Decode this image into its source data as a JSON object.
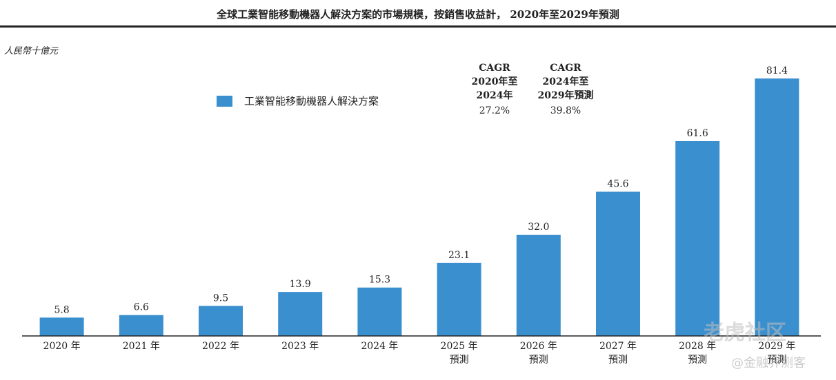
{
  "header": {
    "title": "全球工業智能移動機器人解決方案的市場規模，按銷售收益計， 2020年至2029年預測",
    "unit": "人民幣十億元"
  },
  "legend": {
    "label": "工業智能移動機器人解決方案",
    "color": "#3a8fcf"
  },
  "cagr": [
    {
      "h1": "CAGR",
      "h2": "2020年至",
      "h3": "2024年",
      "value": "27.2%"
    },
    {
      "h1": "CAGR",
      "h2": "2024年至",
      "h3": "2029年預測",
      "value": "39.8%"
    }
  ],
  "chart_data": {
    "type": "bar",
    "categories": [
      "2020 年",
      "2021 年",
      "2022 年",
      "2023 年",
      "2024 年",
      "2025 年\n預測",
      "2026 年\n預測",
      "2027 年\n預測",
      "2028 年\n預測",
      "2029 年\n預測"
    ],
    "series": [
      {
        "name": "工業智能移動機器人解決方案",
        "values": [
          5.8,
          6.6,
          9.5,
          13.9,
          15.3,
          23.1,
          32.0,
          45.6,
          61.6,
          81.4
        ]
      }
    ],
    "value_labels": [
      "5.8",
      "6.6",
      "9.5",
      "13.9",
      "15.3",
      "23.1",
      "32.0",
      "45.6",
      "61.6",
      "81.4"
    ],
    "ylim": [
      0,
      81.4
    ],
    "bar_color": "#3a8fcf",
    "grid": false
  },
  "watermark": {
    "main": "老虎社区",
    "sub": "@金融界测客"
  }
}
